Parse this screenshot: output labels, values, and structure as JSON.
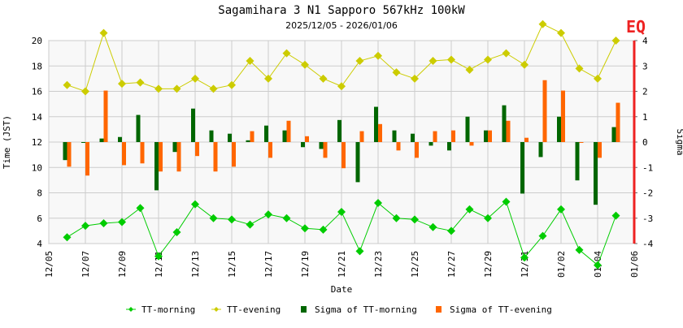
{
  "chart_data": {
    "type": "bar+line",
    "title": "Sagamihara 3 N1 Sapporo 567kHz 100kW",
    "subtitle": "2025/12/05 - 2026/01/06",
    "marker": "EQ",
    "xlabel": "Date",
    "ylabel": "Time (JST)",
    "y2label": "Sigma",
    "ylim": [
      4,
      20
    ],
    "y2lim": [
      -4,
      4
    ],
    "yticks": [
      "4",
      "6",
      "8",
      "10",
      "12",
      "14",
      "16",
      "18",
      "20"
    ],
    "y2ticks": [
      "-4",
      "-3",
      "-2",
      "-1",
      "0",
      "1",
      "2",
      "3",
      "4"
    ],
    "xticks": [
      "12/05",
      "12/07",
      "12/09",
      "12/11",
      "12/13",
      "12/15",
      "12/17",
      "12/19",
      "12/21",
      "12/23",
      "12/25",
      "12/27",
      "12/29",
      "12/31",
      "01/02",
      "01/04",
      "01/06"
    ],
    "grid": true,
    "legend_placement": "bottom",
    "x": [
      "12/06",
      "12/07",
      "12/08",
      "12/09",
      "12/10",
      "12/11",
      "12/12",
      "12/13",
      "12/14",
      "12/15",
      "12/16",
      "12/17",
      "12/18",
      "12/19",
      "12/20",
      "12/21",
      "12/22",
      "12/23",
      "12/24",
      "12/25",
      "12/26",
      "12/27",
      "12/28",
      "12/29",
      "12/30",
      "12/31",
      "01/01",
      "01/02",
      "01/03",
      "01/04",
      "01/05"
    ],
    "series": [
      {
        "name": "TT-morning",
        "type": "line",
        "axis": "left",
        "color": "#00cc00",
        "values": [
          4.5,
          5.4,
          5.6,
          5.7,
          6.8,
          3.0,
          4.9,
          7.1,
          6.0,
          5.9,
          5.5,
          6.3,
          6.0,
          5.2,
          5.1,
          6.5,
          3.4,
          7.2,
          6.0,
          5.9,
          5.3,
          5.0,
          6.7,
          6.0,
          7.3,
          2.9,
          4.6,
          6.7,
          3.5,
          2.3,
          6.2
        ]
      },
      {
        "name": "TT-evening",
        "type": "line",
        "axis": "left",
        "color": "#cccc00",
        "values": [
          16.5,
          16.0,
          20.6,
          16.6,
          16.7,
          16.2,
          16.2,
          17.0,
          16.2,
          16.5,
          18.4,
          17.0,
          19.0,
          18.1,
          17.0,
          16.4,
          18.4,
          18.8,
          17.5,
          17.0,
          18.4,
          18.5,
          17.7,
          18.5,
          19.0,
          18.1,
          21.3,
          20.6,
          17.8,
          17.0,
          20.0
        ]
      },
      {
        "name": "Sigma of TT-morning",
        "type": "bar",
        "axis": "right",
        "color": "#006600",
        "values": [
          -0.71,
          -0.02,
          0.14,
          0.2,
          1.07,
          -1.9,
          -0.39,
          1.32,
          0.46,
          0.33,
          0.07,
          0.65,
          0.46,
          -0.2,
          -0.27,
          0.87,
          -1.58,
          1.39,
          0.46,
          0.33,
          -0.14,
          -0.33,
          1.0,
          0.46,
          1.45,
          -2.03,
          -0.59,
          1.0,
          -1.51,
          -2.47,
          0.59
        ]
      },
      {
        "name": "Sigma of TT-evening",
        "type": "bar",
        "axis": "right",
        "color": "#ff6600",
        "values": [
          -0.97,
          -1.32,
          2.03,
          -0.91,
          -0.84,
          -1.16,
          -1.16,
          -0.55,
          -1.16,
          -0.97,
          0.43,
          -0.62,
          0.84,
          0.23,
          -0.62,
          -1.03,
          0.43,
          0.71,
          -0.33,
          -0.62,
          0.43,
          0.46,
          -0.14,
          0.46,
          0.84,
          0.17,
          2.44,
          2.03,
          -0.02,
          -0.62,
          1.55
        ]
      }
    ]
  }
}
